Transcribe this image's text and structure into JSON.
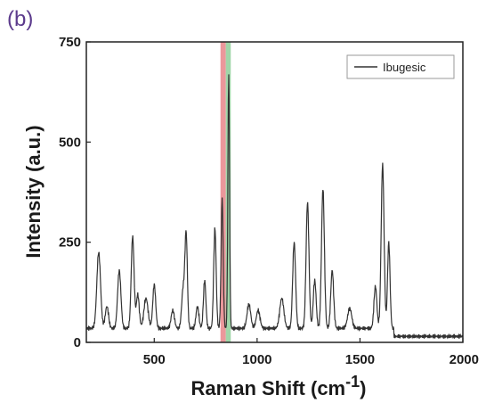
{
  "panel_label": "(b)",
  "chart_data": {
    "type": "line",
    "xlabel": "Raman Shift (cm",
    "xlabel_sup": "-1",
    "ylabel": "Intensity (a.u.)",
    "xlim": [
      170,
      2000
    ],
    "ylim": [
      0,
      750
    ],
    "x_ticks": [
      500,
      1000,
      1500,
      2000
    ],
    "y_ticks": [
      0,
      250,
      500,
      750
    ],
    "legend": {
      "placement": "top-right",
      "entries": [
        "Ibugesic"
      ]
    },
    "highlight_bands": [
      {
        "x_from": 822,
        "x_to": 848,
        "color": "#e8858a"
      },
      {
        "x_from": 848,
        "x_to": 872,
        "color": "#8fcf9a"
      }
    ],
    "series": [
      {
        "name": "Ibugesic",
        "color": "#333333",
        "baseline": 35,
        "baseline_tail": 15,
        "baseline_tail_start": 1665,
        "peaks": [
          {
            "x": 230,
            "y": 225,
            "w": 9
          },
          {
            "x": 270,
            "y": 90,
            "w": 8
          },
          {
            "x": 330,
            "y": 180,
            "w": 8
          },
          {
            "x": 395,
            "y": 265,
            "w": 7
          },
          {
            "x": 420,
            "y": 120,
            "w": 7
          },
          {
            "x": 460,
            "y": 110,
            "w": 10
          },
          {
            "x": 500,
            "y": 145,
            "w": 7
          },
          {
            "x": 590,
            "y": 80,
            "w": 8
          },
          {
            "x": 640,
            "y": 130,
            "w": 7
          },
          {
            "x": 655,
            "y": 270,
            "w": 6
          },
          {
            "x": 710,
            "y": 90,
            "w": 7
          },
          {
            "x": 745,
            "y": 155,
            "w": 6
          },
          {
            "x": 795,
            "y": 285,
            "w": 6
          },
          {
            "x": 830,
            "y": 360,
            "w": 5
          },
          {
            "x": 862,
            "y": 675,
            "w": 4
          },
          {
            "x": 960,
            "y": 95,
            "w": 9
          },
          {
            "x": 1005,
            "y": 80,
            "w": 9
          },
          {
            "x": 1120,
            "y": 110,
            "w": 10
          },
          {
            "x": 1180,
            "y": 250,
            "w": 7
          },
          {
            "x": 1245,
            "y": 350,
            "w": 7
          },
          {
            "x": 1280,
            "y": 155,
            "w": 7
          },
          {
            "x": 1320,
            "y": 385,
            "w": 7
          },
          {
            "x": 1365,
            "y": 180,
            "w": 7
          },
          {
            "x": 1450,
            "y": 85,
            "w": 10
          },
          {
            "x": 1575,
            "y": 140,
            "w": 7
          },
          {
            "x": 1610,
            "y": 445,
            "w": 7
          },
          {
            "x": 1640,
            "y": 250,
            "w": 6
          }
        ]
      }
    ]
  }
}
